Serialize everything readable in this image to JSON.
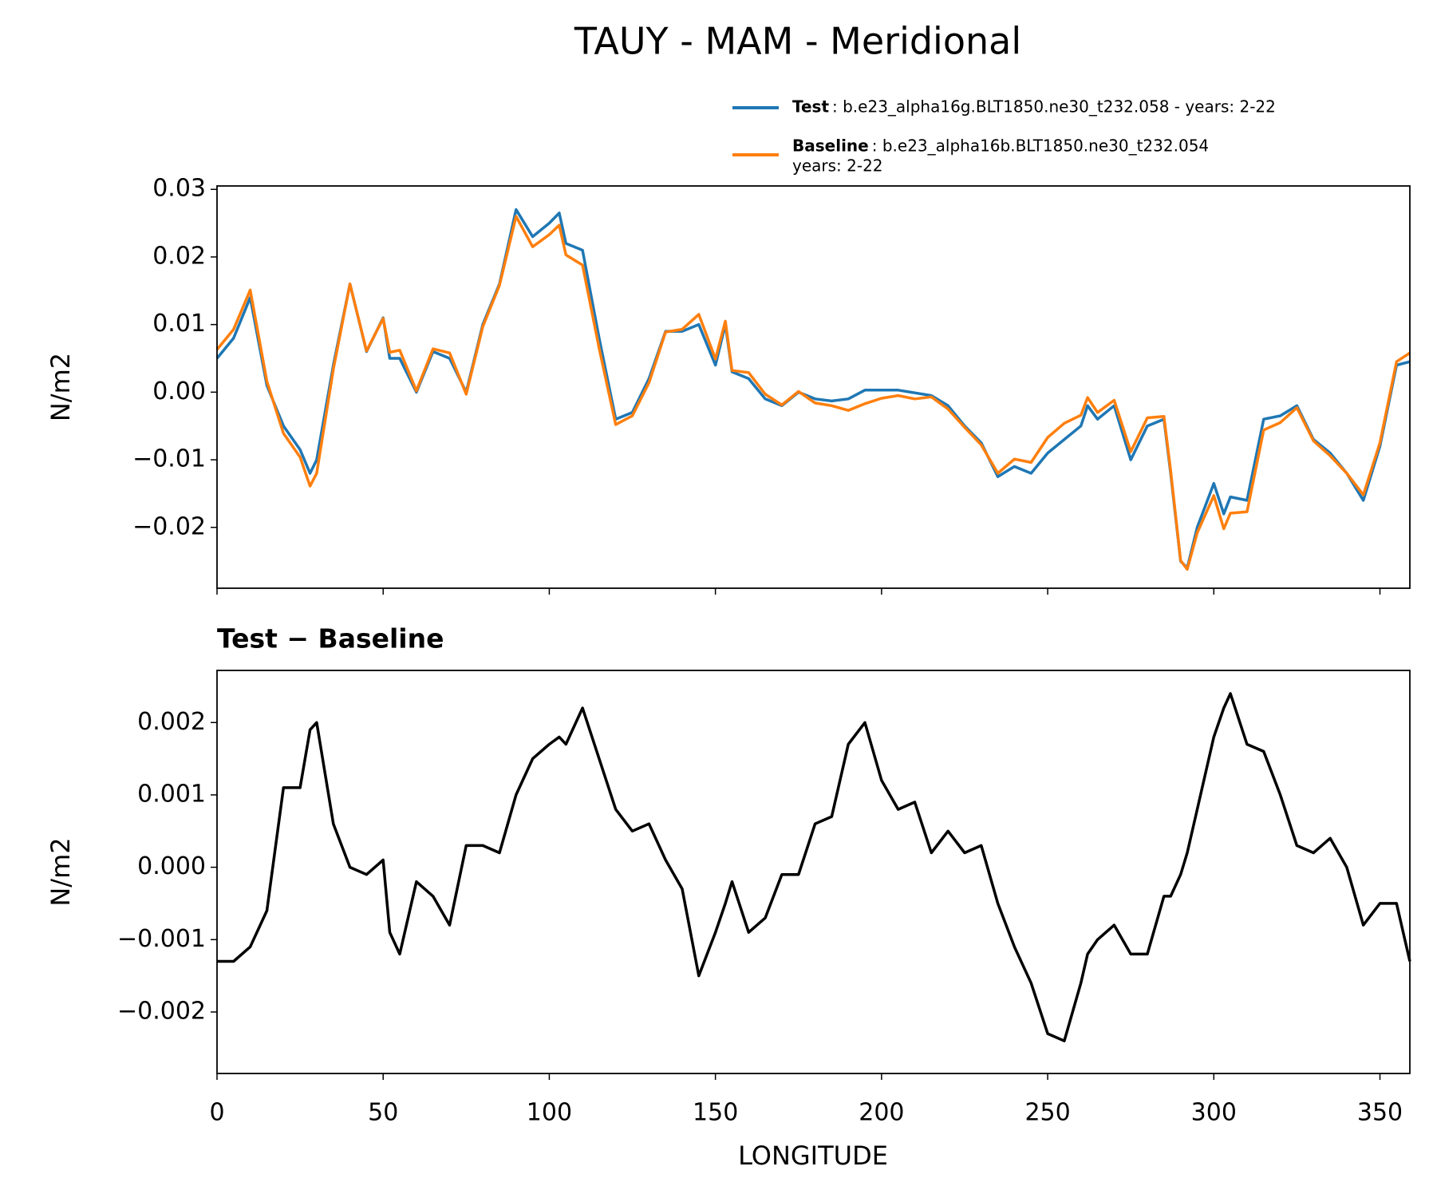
{
  "chart_data": [
    {
      "type": "line",
      "title": "TAUY - MAM - Meridional",
      "ylabel": "N/m2",
      "x": [
        0,
        5,
        10,
        15,
        20,
        25,
        28,
        30,
        35,
        40,
        45,
        50,
        52,
        55,
        60,
        65,
        70,
        75,
        80,
        85,
        90,
        95,
        100,
        103,
        105,
        110,
        115,
        120,
        125,
        130,
        135,
        140,
        145,
        150,
        153,
        155,
        160,
        165,
        170,
        175,
        180,
        185,
        190,
        195,
        200,
        205,
        210,
        215,
        220,
        225,
        230,
        235,
        240,
        245,
        250,
        255,
        260,
        262,
        265,
        270,
        275,
        280,
        285,
        287,
        290,
        292,
        295,
        300,
        303,
        305,
        310,
        315,
        320,
        325,
        330,
        335,
        340,
        345,
        350,
        355,
        359
      ],
      "series": [
        {
          "name": "Test",
          "description": [
            ": b.e23_alpha16g.BLT1850.ne30_t232.058 - years: 2-22"
          ],
          "color": "#1f77b4",
          "values": [
            0.005,
            0.008,
            0.014,
            0.001,
            -0.005,
            -0.0085,
            -0.012,
            -0.01,
            0.004,
            0.016,
            0.006,
            0.011,
            0.005,
            0.005,
            0.0,
            0.006,
            0.005,
            0.0,
            0.01,
            0.016,
            0.027,
            0.023,
            0.025,
            0.0265,
            0.022,
            0.021,
            0.008,
            -0.004,
            -0.003,
            0.002,
            0.009,
            0.009,
            0.01,
            0.004,
            0.01,
            0.003,
            0.002,
            -0.001,
            -0.002,
            0.0,
            -0.001,
            -0.0013,
            -0.001,
            0.0003,
            0.0003,
            0.0003,
            -0.0001,
            -0.0005,
            -0.002,
            -0.005,
            -0.0075,
            -0.0125,
            -0.011,
            -0.012,
            -0.009,
            -0.007,
            -0.005,
            -0.002,
            -0.004,
            -0.002,
            -0.01,
            -0.005,
            -0.004,
            -0.012,
            -0.025,
            -0.026,
            -0.02,
            -0.0135,
            -0.018,
            -0.0155,
            -0.016,
            -0.004,
            -0.0035,
            -0.002,
            -0.007,
            -0.009,
            -0.012,
            -0.016,
            -0.008,
            0.004,
            0.0045
          ]
        },
        {
          "name": "Baseline",
          "description": [
            ": b.e23_alpha16b.BLT1850.ne30_t232.054",
            "years: 2-22"
          ],
          "color": "#ff7f0e",
          "values": [
            0.0063,
            0.0093,
            0.0151,
            0.0016,
            -0.0061,
            -0.0096,
            -0.0139,
            -0.012,
            0.0034,
            0.016,
            0.0061,
            0.0109,
            0.0059,
            0.0062,
            0.0002,
            0.0064,
            0.0058,
            -0.0003,
            0.0097,
            0.0158,
            0.026,
            0.0215,
            0.0233,
            0.0247,
            0.0203,
            0.0188,
            0.0065,
            -0.0048,
            -0.0035,
            0.0014,
            0.0089,
            0.0093,
            0.0115,
            0.0049,
            0.0105,
            0.0032,
            0.0029,
            -0.0003,
            -0.0019,
            0.0001,
            -0.0016,
            -0.002,
            -0.0027,
            -0.0017,
            -0.0009,
            -0.0005,
            -0.001,
            -0.0007,
            -0.0025,
            -0.0052,
            -0.0078,
            -0.012,
            -0.0099,
            -0.0104,
            -0.0067,
            -0.0046,
            -0.0034,
            -0.0008,
            -0.003,
            -0.0012,
            -0.0088,
            -0.0038,
            -0.0036,
            -0.0116,
            -0.0249,
            -0.0262,
            -0.0208,
            -0.0153,
            -0.0202,
            -0.0179,
            -0.0177,
            -0.0056,
            -0.0045,
            -0.0023,
            -0.0072,
            -0.0094,
            -0.012,
            -0.0152,
            -0.0075,
            0.0045,
            0.0058
          ]
        }
      ],
      "xlim": [
        0,
        359
      ],
      "xticks": [
        0,
        50,
        100,
        150,
        200,
        250,
        300,
        350
      ],
      "show_xtick_labels": false,
      "ylim": [
        -0.029,
        0.0305
      ],
      "yticks": [
        {
          "value": -0.02,
          "label": "−0.02"
        },
        {
          "value": -0.01,
          "label": "−0.01"
        },
        {
          "value": 0,
          "label": "0.00"
        },
        0.01,
        0.02,
        0.03
      ]
    },
    {
      "type": "line",
      "title": "Test − Baseline",
      "ylabel": "N/m2",
      "xlabel": "LONGITUDE",
      "color": "#000000",
      "x": [
        0,
        5,
        10,
        15,
        20,
        25,
        28,
        30,
        35,
        40,
        45,
        50,
        52,
        55,
        60,
        65,
        70,
        75,
        80,
        85,
        90,
        95,
        100,
        103,
        105,
        110,
        115,
        120,
        125,
        130,
        135,
        140,
        145,
        150,
        153,
        155,
        160,
        165,
        170,
        175,
        180,
        185,
        190,
        195,
        200,
        205,
        210,
        215,
        220,
        225,
        230,
        235,
        240,
        245,
        250,
        255,
        260,
        262,
        265,
        270,
        275,
        280,
        285,
        287,
        290,
        292,
        295,
        300,
        303,
        305,
        310,
        315,
        320,
        325,
        330,
        335,
        340,
        345,
        350,
        355,
        359
      ],
      "values": [
        -0.0013,
        -0.0013,
        -0.0011,
        -0.0006,
        0.0011,
        0.0011,
        0.0019,
        0.002,
        0.0006,
        0.0,
        -0.0001,
        0.0001,
        -0.0009,
        -0.0012,
        -0.0002,
        -0.0004,
        -0.0008,
        0.0003,
        0.0003,
        0.0002,
        0.001,
        0.0015,
        0.0017,
        0.0018,
        0.0017,
        0.0022,
        0.0015,
        0.0008,
        0.0005,
        0.0006,
        0.0001,
        -0.0003,
        -0.0015,
        -0.0009,
        -0.0005,
        -0.0002,
        -0.0009,
        -0.0007,
        -0.0001,
        -0.0001,
        0.0006,
        0.0007,
        0.0017,
        0.002,
        0.0012,
        0.0008,
        0.0009,
        0.0002,
        0.0005,
        0.0002,
        0.0003,
        -0.0005,
        -0.0011,
        -0.0016,
        -0.0023,
        -0.0024,
        -0.0016,
        -0.0012,
        -0.001,
        -0.0008,
        -0.0012,
        -0.0012,
        -0.0004,
        -0.0004,
        -0.0001,
        0.0002,
        0.0008,
        0.0018,
        0.0022,
        0.0024,
        0.0017,
        0.0016,
        0.001,
        0.0003,
        0.0002,
        0.0004,
        0.0,
        -0.0008,
        -0.0005,
        -0.0005,
        -0.0013
      ],
      "xlim": [
        0,
        359
      ],
      "xticks": [
        0,
        50,
        100,
        150,
        200,
        250,
        300,
        350
      ],
      "show_xtick_labels": true,
      "ylim": [
        -0.00285,
        0.00272
      ],
      "yticks": [
        {
          "value": -0.002,
          "label": "−0.002"
        },
        {
          "value": -0.001,
          "label": "−0.001"
        },
        {
          "value": 0,
          "label": "0.000"
        },
        0.001,
        0.002
      ]
    }
  ]
}
